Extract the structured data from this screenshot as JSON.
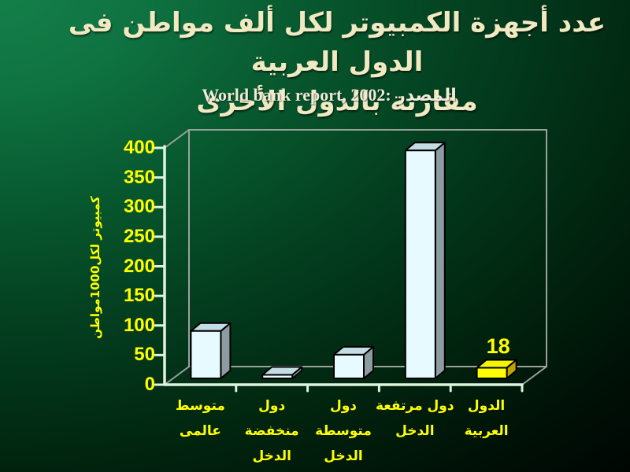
{
  "slide": {
    "title_lines": [
      "عدد أجهزة الكمبيوتر لكل ألف مواطن فى الدول العربية",
      "مقارنة بالدول الأخرى"
    ],
    "subtitle": "World bank report, 2002: المصدر",
    "colors": {
      "background_start": "#15814B",
      "background_end": "#000000",
      "title_text": "#F0E9C2",
      "subtitle_text": "#EEEBD6"
    }
  },
  "chart_data": {
    "type": "bar",
    "style": "3d-column",
    "title": "",
    "xlabel": "",
    "ylabel": "كمبيوتر لكل1000مواطن",
    "categories": [
      [
        "متوسط",
        "عالمى"
      ],
      [
        "دول",
        "منخفضة",
        "الدخل"
      ],
      [
        "دول",
        "متوسطة",
        "الدخل"
      ],
      [
        "دول مرتفعة",
        "الدخل"
      ],
      [
        "الدول",
        "العربية"
      ]
    ],
    "values": [
      80,
      6,
      40,
      385,
      18
    ],
    "data_labels": [
      "",
      "",
      "",
      "",
      "18"
    ],
    "highlight_index": 4,
    "ylim": [
      0,
      400
    ],
    "ytick_step": 50,
    "ytick_labels": [
      "0",
      "50",
      "100",
      "150",
      "200",
      "250",
      "300",
      "350",
      "400"
    ],
    "grid": false,
    "legend": false,
    "colors": {
      "bar_front": "#E6FAFF",
      "bar_top": "#C4DCE4",
      "bar_side": "#8D9CA2",
      "highlight_front": "#FFFF00",
      "highlight_top": "#F4F400",
      "highlight_side": "#BFA300",
      "bar_outline": "#000000",
      "axis_line": "#DDF4DD",
      "wall_line": "#9AA39A",
      "tick_text": "#FFFF00",
      "category_text": "#FFFF00",
      "data_label_text": "#FFFF00"
    }
  }
}
